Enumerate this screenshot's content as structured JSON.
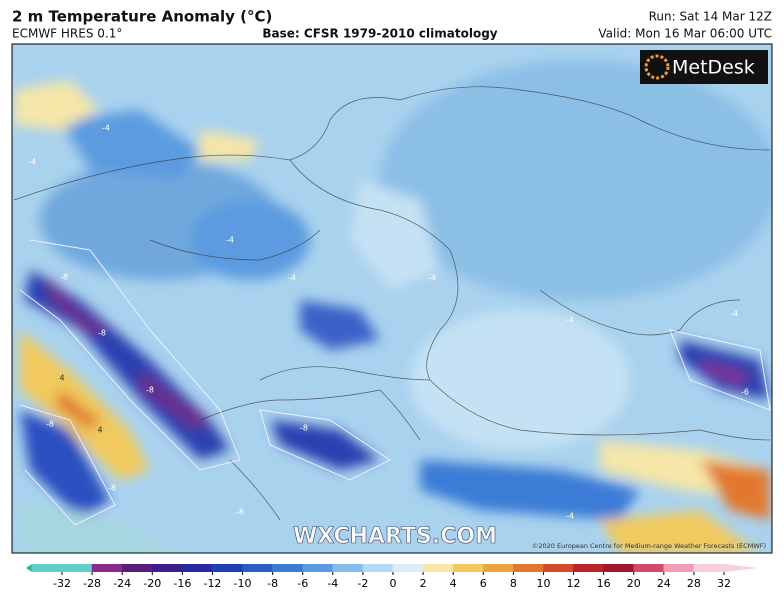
{
  "header": {
    "title": "2 m Temperature Anomaly (°C)",
    "model": "ECMWF HRES 0.1°",
    "base": "Base: CFSR 1979-2010 climatology",
    "run": "Run: Sat 14 Mar 12Z",
    "valid": "Valid: Mon 16 Mar 06:00 UTC"
  },
  "map": {
    "logo": "MetDesk",
    "watermark": "WXCHARTS.COM",
    "copyright": "©2020 European Centre for Medium-range Weather Forecasts (ECMWF)",
    "contour_labels": [
      "-4",
      "-4",
      "-4",
      "-8",
      "-8",
      "-8",
      "-8",
      "-8",
      "-6",
      "-4",
      "-4",
      "-4",
      "-4",
      "4",
      "4",
      "-8",
      "-8",
      "-4"
    ]
  },
  "colorbar": {
    "ticks": [
      -32,
      -28,
      -24,
      -20,
      -16,
      -12,
      -10,
      -8,
      -6,
      -4,
      -2,
      0,
      2,
      4,
      6,
      8,
      10,
      12,
      16,
      20,
      24,
      28,
      32
    ],
    "colors": [
      "#2ab795",
      "#5fd1c8",
      "#8a2d8a",
      "#5a1f7a",
      "#3a1f8a",
      "#2a2aa0",
      "#1f3fb5",
      "#2a5cc8",
      "#3b7bd6",
      "#5b9be0",
      "#85bce9",
      "#b5d9f2",
      "#dcecf6",
      "#f6e6a8",
      "#f1c95d",
      "#eba53e",
      "#e2782e",
      "#d4492a",
      "#b8242a",
      "#a0172e",
      "#d24a6a",
      "#f29bb4",
      "#f8cfdc"
    ]
  }
}
